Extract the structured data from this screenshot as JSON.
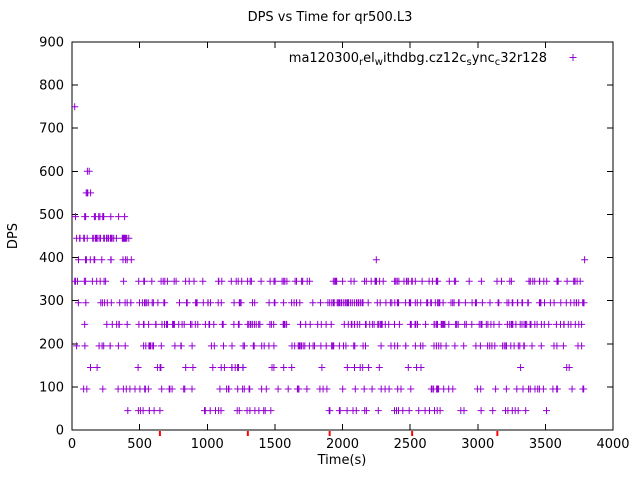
{
  "title": "DPS vs Time for qr500.L3",
  "axes": {
    "xlabel": "Time(s)",
    "ylabel": "DPS"
  },
  "legend": {
    "series_name": "ma120300_rel_withdbg.cz12c_sync_c32r128",
    "display_segments": [
      {
        "text": "ma120300"
      },
      {
        "sub": "r"
      },
      {
        "text": "el"
      },
      {
        "sub": "w"
      },
      {
        "text": "ithdbg.cz12c"
      },
      {
        "sub": "s"
      },
      {
        "text": "ync"
      },
      {
        "sub": "c"
      },
      {
        "text": "32r128"
      }
    ],
    "marker_glyph": "+"
  },
  "colors": {
    "series": "#9400d3",
    "axis": "#000000",
    "red_axis_marks": "#ff0000",
    "text": "#000000",
    "background": "#ffffff"
  },
  "chart_data": {
    "type": "scatter",
    "marker": "plus",
    "title": "DPS vs Time for qr500.L3",
    "xlabel": "Time(s)",
    "ylabel": "DPS",
    "xlim": [
      0,
      4000
    ],
    "ylim": [
      0,
      900
    ],
    "xticks": [
      0,
      500,
      1000,
      1500,
      2000,
      2500,
      3000,
      3500,
      4000
    ],
    "yticks": [
      0,
      100,
      200,
      300,
      400,
      500,
      600,
      700,
      800,
      900
    ],
    "grid": false,
    "legend_position": "top-right-inside",
    "series": [
      {
        "name": "ma120300_rel_withdbg.cz12c_sync_c32r128",
        "color": "#9400d3",
        "bands": [
          {
            "dps": 45,
            "segments": [
              {
                "t0": 400,
                "t1": 3750,
                "count": 55
              }
            ]
          },
          {
            "dps": 95,
            "segments": [
              {
                "t0": 50,
                "t1": 3800,
                "count": 78
              }
            ]
          },
          {
            "dps": 145,
            "segments": [
              {
                "t0": 30,
                "t1": 3700,
                "count": 36
              }
            ]
          },
          {
            "dps": 195,
            "segments": [
              {
                "t0": 20,
                "t1": 3800,
                "count": 96
              }
            ]
          },
          {
            "dps": 245,
            "segments": [
              {
                "t0": 60,
                "t1": 420,
                "count": 7
              },
              {
                "t0": 420,
                "t1": 3800,
                "count": 140
              }
            ]
          },
          {
            "dps": 295,
            "segments": [
              {
                "t0": 30,
                "t1": 380,
                "count": 8
              },
              {
                "t0": 380,
                "t1": 3800,
                "count": 140
              }
            ]
          },
          {
            "dps": 345,
            "segments": [
              {
                "t0": 20,
                "t1": 3800,
                "count": 115
              }
            ]
          },
          {
            "dps": 395,
            "segments": [
              {
                "t0": 10,
                "t1": 460,
                "count": 14
              }
            ]
          },
          {
            "dps": 445,
            "segments": [
              {
                "t0": 20,
                "t1": 430,
                "count": 36
              }
            ]
          },
          {
            "dps": 495,
            "segments": [
              {
                "t0": 10,
                "t1": 390,
                "count": 12
              }
            ]
          },
          {
            "dps": 550,
            "segments": [
              {
                "t0": 100,
                "t1": 210,
                "count": 4
              }
            ]
          },
          {
            "dps": 600,
            "segments": [
              {
                "t0": 85,
                "t1": 140,
                "count": 2
              }
            ]
          }
        ],
        "isolated_points": [
          {
            "t": 20,
            "dps": 750
          },
          {
            "t": 2250,
            "dps": 395
          },
          {
            "t": 3790,
            "dps": 395
          }
        ]
      }
    ],
    "red_axis_marks_t": [
      650,
      1300,
      1905,
      2515,
      3145
    ]
  }
}
